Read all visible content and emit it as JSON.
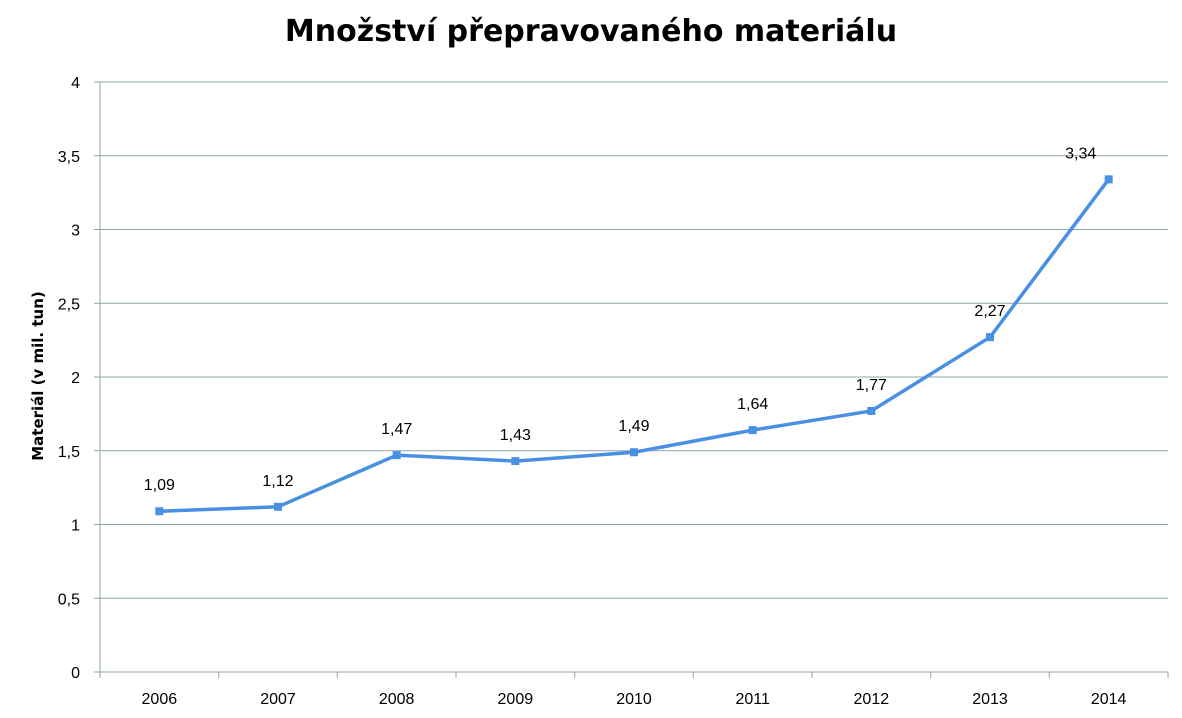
{
  "chart_data": {
    "type": "line",
    "title": "Množství přepravovaného materiálu",
    "xlabel": "",
    "ylabel": "Materiál (v mil. tun)",
    "categories": [
      "2006",
      "2007",
      "2008",
      "2009",
      "2010",
      "2011",
      "2012",
      "2013",
      "2014"
    ],
    "series": [
      {
        "values": [
          1.09,
          1.12,
          1.47,
          1.43,
          1.49,
          1.64,
          1.77,
          2.27,
          3.34
        ],
        "labels": [
          "1,09",
          "1,12",
          "1,47",
          "1,43",
          "1,49",
          "1,64",
          "1,77",
          "2,27",
          "3,34"
        ],
        "color": "#4a90e2"
      }
    ],
    "ylim": [
      0,
      4
    ],
    "yticks": [
      0,
      0.5,
      1,
      1.5,
      2,
      2.5,
      3,
      3.5,
      4
    ],
    "ytick_labels": [
      "0",
      "0,5",
      "1",
      "1,5",
      "2",
      "2,5",
      "3",
      "3,5",
      "4"
    ],
    "grid": true,
    "legend": false
  }
}
